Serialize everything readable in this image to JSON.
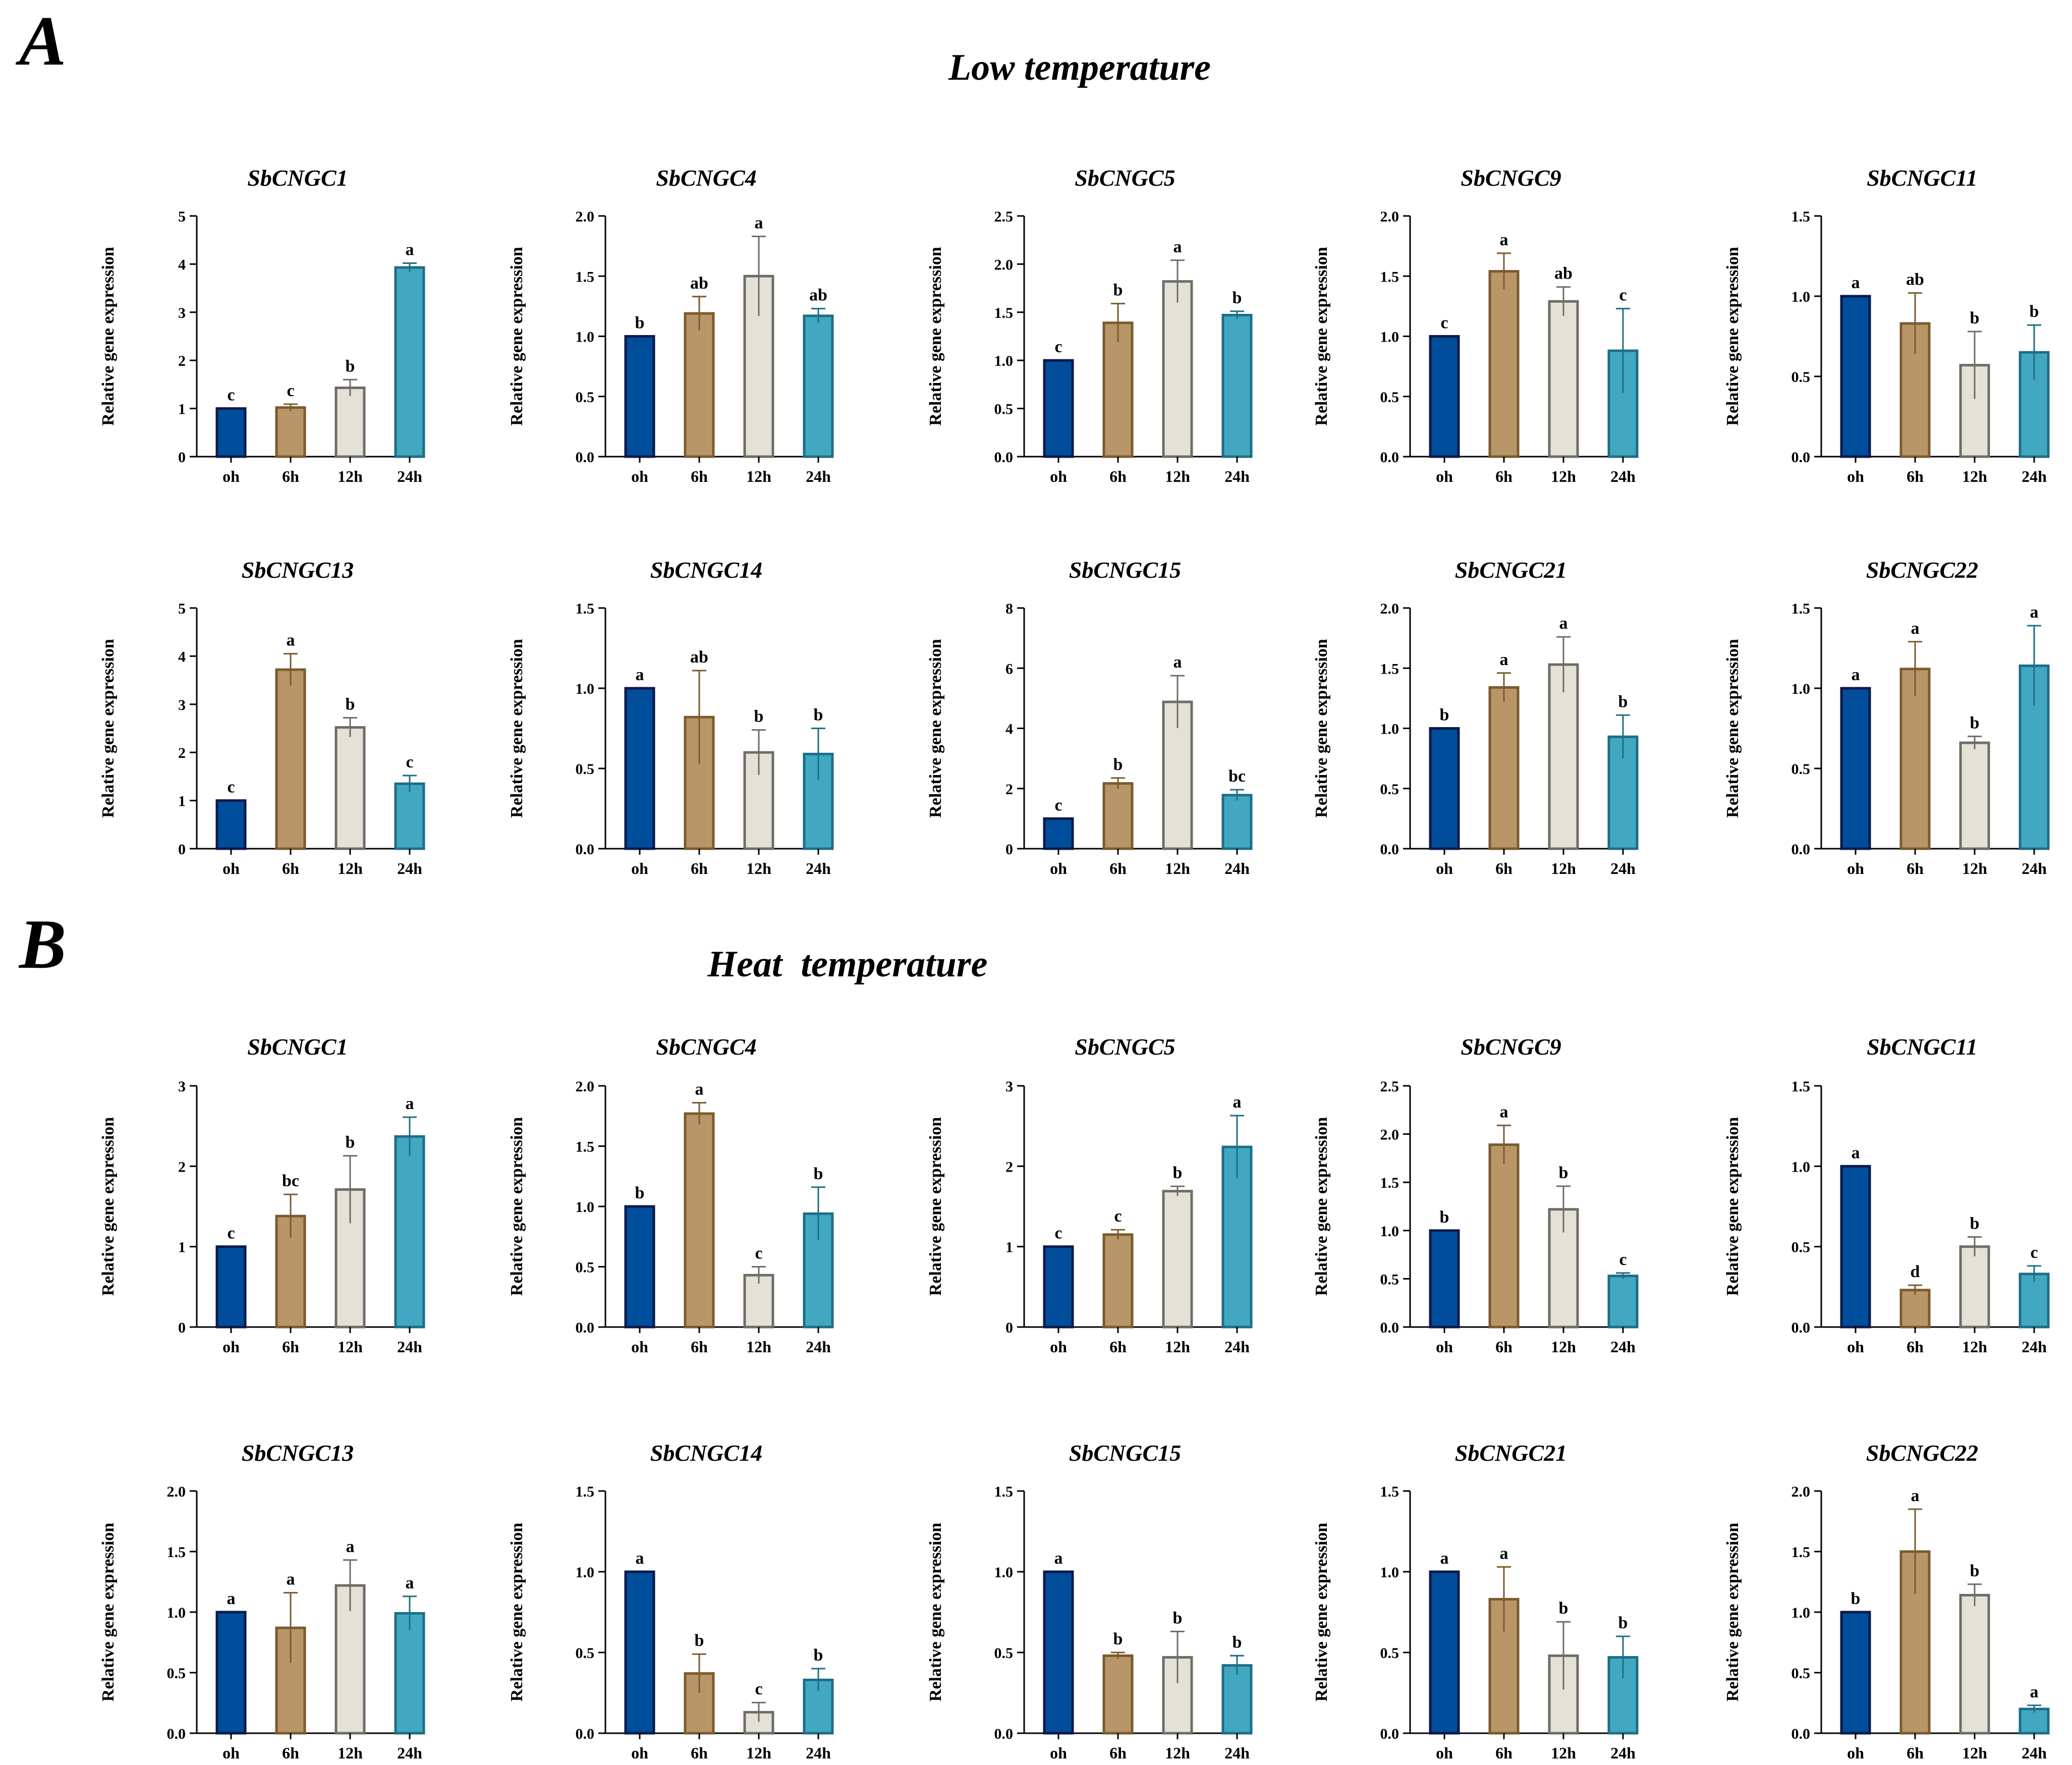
{
  "colors": {
    "bar_fill": [
      "#004d9b",
      "#b99667",
      "#e4e1d6",
      "#42a8c2"
    ],
    "bar_stroke": [
      "#0b1a4a",
      "#7a5a2e",
      "#6e6c66",
      "#1d6e84"
    ],
    "axis": "#000000"
  },
  "panels": [
    {
      "letter": "A",
      "title": "Low temperature"
    },
    {
      "letter": "B",
      "title": "Heat  temperature"
    }
  ],
  "chart_data": [
    {
      "panel": "A",
      "type": "bar",
      "title": "SbCNGC1",
      "ylabel": "Relative gene expression",
      "categories": [
        "oh",
        "6h",
        "12h",
        "24h"
      ],
      "values": [
        1,
        1.02,
        1.43,
        3.93
      ],
      "errors": [
        0,
        0.07,
        0.17,
        0.09
      ],
      "labels": [
        "c",
        "c",
        "b",
        "a"
      ],
      "ylim": [
        0,
        5
      ],
      "yticks": [
        "0",
        "1",
        "2",
        "3",
        "4",
        "5"
      ]
    },
    {
      "panel": "A",
      "type": "bar",
      "title": "SbCNGC4",
      "ylabel": "Relative gene expression",
      "categories": [
        "oh",
        "6h",
        "12h",
        "24h"
      ],
      "values": [
        1,
        1.19,
        1.5,
        1.17
      ],
      "errors": [
        0,
        0.14,
        0.33,
        0.06
      ],
      "labels": [
        "b",
        "ab",
        "a",
        "ab"
      ],
      "ylim": [
        0,
        2
      ],
      "yticks": [
        "0.0",
        "0.5",
        "1.0",
        "1.5",
        "2.0"
      ]
    },
    {
      "panel": "A",
      "type": "bar",
      "title": "SbCNGC5",
      "ylabel": "Relative gene expression",
      "categories": [
        "oh",
        "6h",
        "12h",
        "24h"
      ],
      "values": [
        1,
        1.39,
        1.82,
        1.47
      ],
      "errors": [
        0,
        0.2,
        0.22,
        0.04
      ],
      "labels": [
        "c",
        "b",
        "a",
        "b"
      ],
      "ylim": [
        0,
        2.5
      ],
      "yticks": [
        "0.0",
        "0.5",
        "1.0",
        "1.5",
        "2.0",
        "2.5"
      ]
    },
    {
      "panel": "A",
      "type": "bar",
      "title": "SbCNGC9",
      "ylabel": "Relative gene expression",
      "categories": [
        "oh",
        "6h",
        "12h",
        "24h"
      ],
      "values": [
        1,
        1.54,
        1.29,
        0.88
      ],
      "errors": [
        0,
        0.15,
        0.12,
        0.35
      ],
      "labels": [
        "c",
        "a",
        "ab",
        "c"
      ],
      "ylim": [
        0,
        2
      ],
      "yticks": [
        "0.0",
        "0.5",
        "1.0",
        "1.5",
        "2.0"
      ]
    },
    {
      "panel": "A",
      "type": "bar",
      "title": "SbCNGC11",
      "ylabel": "Relative gene expression",
      "categories": [
        "oh",
        "6h",
        "12h",
        "24h"
      ],
      "values": [
        1,
        0.83,
        0.57,
        0.65
      ],
      "errors": [
        0,
        0.19,
        0.21,
        0.17
      ],
      "labels": [
        "a",
        "ab",
        "b",
        "b"
      ],
      "ylim": [
        0,
        1.5
      ],
      "yticks": [
        "0.0",
        "0.5",
        "1.0",
        "1.5"
      ]
    },
    {
      "panel": "A",
      "type": "bar",
      "title": "SbCNGC13",
      "ylabel": "Relative gene expression",
      "categories": [
        "oh",
        "6h",
        "12h",
        "24h"
      ],
      "values": [
        1,
        3.72,
        2.52,
        1.35
      ],
      "errors": [
        0,
        0.33,
        0.2,
        0.17
      ],
      "labels": [
        "c",
        "a",
        "b",
        "c"
      ],
      "ylim": [
        0,
        5
      ],
      "yticks": [
        "0",
        "1",
        "2",
        "3",
        "4",
        "5"
      ]
    },
    {
      "panel": "A",
      "type": "bar",
      "title": "SbCNGC14",
      "ylabel": "Relative gene expression",
      "categories": [
        "oh",
        "6h",
        "12h",
        "24h"
      ],
      "values": [
        1,
        0.82,
        0.6,
        0.59
      ],
      "errors": [
        0,
        0.29,
        0.14,
        0.16
      ],
      "labels": [
        "a",
        "ab",
        "b",
        "b"
      ],
      "ylim": [
        0,
        1.5
      ],
      "yticks": [
        "0.0",
        "0.5",
        "1.0",
        "1.5"
      ]
    },
    {
      "panel": "A",
      "type": "bar",
      "title": "SbCNGC15",
      "ylabel": "Relative gene expression",
      "categories": [
        "oh",
        "6h",
        "12h",
        "24h"
      ],
      "values": [
        1,
        2.17,
        4.88,
        1.78
      ],
      "errors": [
        0,
        0.18,
        0.87,
        0.18
      ],
      "labels": [
        "c",
        "b",
        "a",
        "bc"
      ],
      "ylim": [
        0,
        8
      ],
      "yticks": [
        "0",
        "2",
        "4",
        "6",
        "8"
      ]
    },
    {
      "panel": "A",
      "type": "bar",
      "title": "SbCNGC21",
      "ylabel": "Relative gene expression",
      "categories": [
        "oh",
        "6h",
        "12h",
        "24h"
      ],
      "values": [
        1,
        1.34,
        1.53,
        0.93
      ],
      "errors": [
        0,
        0.12,
        0.23,
        0.18
      ],
      "labels": [
        "b",
        "a",
        "a",
        "b"
      ],
      "ylim": [
        0,
        2
      ],
      "yticks": [
        "0.0",
        "0.5",
        "1.0",
        "1.5",
        "2.0"
      ]
    },
    {
      "panel": "A",
      "type": "bar",
      "title": "SbCNGC22",
      "ylabel": "Relative gene expression",
      "categories": [
        "oh",
        "6h",
        "12h",
        "24h"
      ],
      "values": [
        1,
        1.12,
        0.66,
        1.14
      ],
      "errors": [
        0,
        0.17,
        0.04,
        0.25
      ],
      "labels": [
        "a",
        "a",
        "b",
        "a"
      ],
      "ylim": [
        0,
        1.5
      ],
      "yticks": [
        "0.0",
        "0.5",
        "1.0",
        "1.5"
      ]
    },
    {
      "panel": "B",
      "type": "bar",
      "title": "SbCNGC1",
      "ylabel": "Relative gene expression",
      "categories": [
        "oh",
        "6h",
        "12h",
        "24h"
      ],
      "values": [
        1,
        1.38,
        1.71,
        2.37
      ],
      "errors": [
        0,
        0.27,
        0.42,
        0.24
      ],
      "labels": [
        "c",
        "bc",
        "b",
        "a"
      ],
      "ylim": [
        0,
        3
      ],
      "yticks": [
        "0",
        "1",
        "2",
        "3"
      ]
    },
    {
      "panel": "B",
      "type": "bar",
      "title": "SbCNGC4",
      "ylabel": "Relative gene expression",
      "categories": [
        "oh",
        "6h",
        "12h",
        "24h"
      ],
      "values": [
        1,
        1.77,
        0.43,
        0.94
      ],
      "errors": [
        0,
        0.09,
        0.07,
        0.22
      ],
      "labels": [
        "b",
        "a",
        "c",
        "b"
      ],
      "ylim": [
        0,
        2
      ],
      "yticks": [
        "0.0",
        "0.5",
        "1.0",
        "1.5",
        "2.0"
      ]
    },
    {
      "panel": "B",
      "type": "bar",
      "title": "SbCNGC5",
      "ylabel": "Relative gene expression",
      "categories": [
        "oh",
        "6h",
        "12h",
        "24h"
      ],
      "values": [
        1,
        1.15,
        1.69,
        2.24
      ],
      "errors": [
        0,
        0.06,
        0.06,
        0.39
      ],
      "labels": [
        "c",
        "c",
        "b",
        "a"
      ],
      "ylim": [
        0,
        3
      ],
      "yticks": [
        "0",
        "1",
        "2",
        "3"
      ]
    },
    {
      "panel": "B",
      "type": "bar",
      "title": "SbCNGC9",
      "ylabel": "Relative gene expression",
      "categories": [
        "oh",
        "6h",
        "12h",
        "24h"
      ],
      "values": [
        1,
        1.89,
        1.22,
        0.53
      ],
      "errors": [
        0,
        0.2,
        0.24,
        0.03
      ],
      "labels": [
        "b",
        "a",
        "b",
        "c"
      ],
      "ylim": [
        0,
        2.5
      ],
      "yticks": [
        "0.0",
        "0.5",
        "1.0",
        "1.5",
        "2.0",
        "2.5"
      ]
    },
    {
      "panel": "B",
      "type": "bar",
      "title": "SbCNGC11",
      "ylabel": "Relative gene expression",
      "categories": [
        "oh",
        "6h",
        "12h",
        "24h"
      ],
      "values": [
        1,
        0.23,
        0.5,
        0.33
      ],
      "errors": [
        0,
        0.03,
        0.06,
        0.05
      ],
      "labels": [
        "a",
        "d",
        "b",
        "c"
      ],
      "ylim": [
        0,
        1.5
      ],
      "yticks": [
        "0.0",
        "0.5",
        "1.0",
        "1.5"
      ]
    },
    {
      "panel": "B",
      "type": "bar",
      "title": "SbCNGC13",
      "ylabel": "Relative gene expression",
      "categories": [
        "oh",
        "6h",
        "12h",
        "24h"
      ],
      "values": [
        1,
        0.87,
        1.22,
        0.99
      ],
      "errors": [
        0,
        0.29,
        0.21,
        0.14
      ],
      "labels": [
        "a",
        "a",
        "a",
        "a"
      ],
      "ylim": [
        0,
        2
      ],
      "yticks": [
        "0.0",
        "0.5",
        "1.0",
        "1.5",
        "2.0"
      ]
    },
    {
      "panel": "B",
      "type": "bar",
      "title": "SbCNGC14",
      "ylabel": "Relative gene expression",
      "categories": [
        "oh",
        "6h",
        "12h",
        "24h"
      ],
      "values": [
        1,
        0.37,
        0.13,
        0.33
      ],
      "errors": [
        0,
        0.12,
        0.06,
        0.07
      ],
      "labels": [
        "a",
        "b",
        "c",
        "b"
      ],
      "ylim": [
        0,
        1.5
      ],
      "yticks": [
        "0.0",
        "0.5",
        "1.0",
        "1.5"
      ]
    },
    {
      "panel": "B",
      "type": "bar",
      "title": "SbCNGC15",
      "ylabel": "Relative gene expression",
      "categories": [
        "oh",
        "6h",
        "12h",
        "24h"
      ],
      "values": [
        1,
        0.48,
        0.47,
        0.42
      ],
      "errors": [
        0,
        0.02,
        0.16,
        0.06
      ],
      "labels": [
        "a",
        "b",
        "b",
        "b"
      ],
      "ylim": [
        0,
        1.5
      ],
      "yticks": [
        "0.0",
        "0.5",
        "1.0",
        "1.5"
      ]
    },
    {
      "panel": "B",
      "type": "bar",
      "title": "SbCNGC21",
      "ylabel": "Relative gene expression",
      "categories": [
        "oh",
        "6h",
        "12h",
        "24h"
      ],
      "values": [
        1,
        0.83,
        0.48,
        0.47
      ],
      "errors": [
        0,
        0.2,
        0.21,
        0.13
      ],
      "labels": [
        "a",
        "a",
        "b",
        "b"
      ],
      "ylim": [
        0,
        1.5
      ],
      "yticks": [
        "0.0",
        "0.5",
        "1.0",
        "1.5"
      ]
    },
    {
      "panel": "B",
      "type": "bar",
      "title": "SbCNGC22",
      "ylabel": "Relative gene expression",
      "categories": [
        "oh",
        "6h",
        "12h",
        "24h"
      ],
      "values": [
        1,
        1.5,
        1.14,
        0.2
      ],
      "errors": [
        0,
        0.35,
        0.09,
        0.03
      ],
      "labels": [
        "b",
        "a",
        "b",
        "a"
      ],
      "ylim": [
        0,
        2
      ],
      "yticks": [
        "0.0",
        "0.5",
        "1.0",
        "1.5",
        "2.0"
      ]
    }
  ]
}
